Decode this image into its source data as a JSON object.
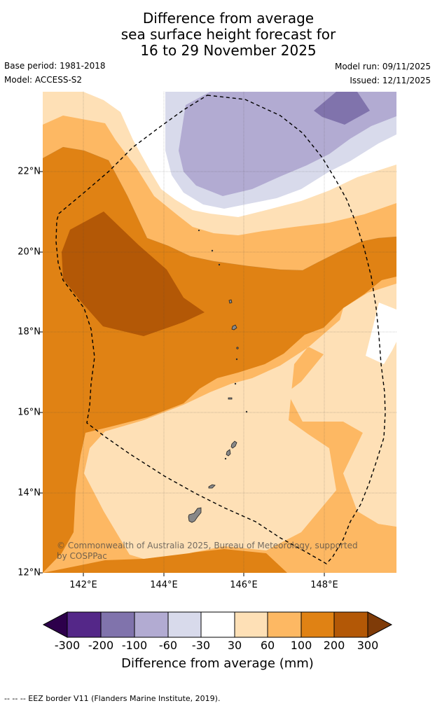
{
  "title": {
    "line1": "Difference from average",
    "line2": "sea surface height forecast for",
    "line3": "16 to 29 November 2025"
  },
  "meta": {
    "base_period": "Base period: 1981-2018",
    "model": "Model: ACCESS-S2",
    "model_run": "Model run: 09/11/2025",
    "issued": "Issued: 12/11/2025"
  },
  "map": {
    "lat_labels": [
      "22°N",
      "20°N",
      "18°N",
      "16°N",
      "14°N",
      "12°N"
    ],
    "lon_labels": [
      "142°E",
      "144°E",
      "146°E",
      "148°E"
    ],
    "credit": "© Commonwealth of Australia 2025, Bureau of Meteorology, supported by COSPPac"
  },
  "legend": {
    "ticks": [
      "-300",
      "-200",
      "-100",
      "-60",
      "-30",
      "30",
      "60",
      "100",
      "200",
      "300"
    ],
    "label": "Difference from average (mm)",
    "colors": {
      "lt_-300": "#2d004b",
      "-300_-200": "#542788",
      "-200_-100": "#8073ac",
      "-100_-60": "#b2abd2",
      "-60_-30": "#d8daeb",
      "-30_30": "#ffffff",
      "30_60": "#fee0b6",
      "60_100": "#fdb863",
      "100_200": "#e08214",
      "200_300": "#b35806",
      "gt_300": "#7f3b08"
    }
  },
  "footer": "--  --  -- EEZ border V11 (Flanders Marine Institute, 2019)."
}
